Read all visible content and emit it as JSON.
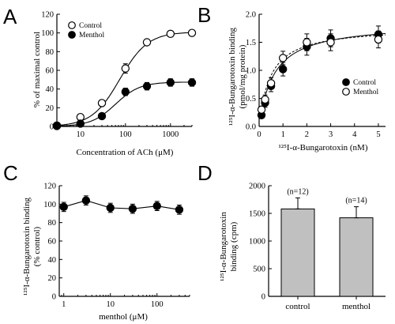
{
  "chart_data": [
    {
      "panel": "A",
      "type": "line",
      "xscale": "log",
      "xlim": [
        3,
        3000
      ],
      "ylim": [
        0,
        120
      ],
      "xticks": [
        10,
        100,
        1000
      ],
      "xticklabels": [
        "10",
        "100",
        "1000"
      ],
      "yticks": [
        0,
        20,
        40,
        60,
        80,
        100,
        120
      ],
      "xlabel": "Concentration of ACh (μM)",
      "ylabel": "% of maximal control",
      "legend_position": "top-left",
      "series": [
        {
          "name": "Control",
          "marker": "open-circle",
          "x": [
            3,
            10,
            30,
            100,
            300,
            1000,
            3000
          ],
          "y": [
            1,
            10,
            25,
            62,
            90,
            99,
            100
          ],
          "err": [
            0.5,
            2,
            3,
            5,
            3,
            3,
            3
          ]
        },
        {
          "name": "Menthol",
          "marker": "filled-circle",
          "x": [
            3,
            10,
            30,
            100,
            300,
            1000,
            3000
          ],
          "y": [
            0.5,
            3,
            11,
            37,
            43,
            47,
            47
          ],
          "err": [
            0.5,
            1,
            2,
            4,
            4,
            4,
            4
          ]
        }
      ]
    },
    {
      "panel": "B",
      "type": "scatter",
      "xlim": [
        0,
        5.3
      ],
      "ylim": [
        0,
        2
      ],
      "xticks": [
        0,
        1,
        2,
        3,
        4,
        5
      ],
      "yticks": [
        0.0,
        0.5,
        1.0,
        1.5,
        2.0
      ],
      "yticklabels": [
        "0.0",
        "0.5",
        "1.0",
        "1.5",
        "2.0"
      ],
      "xlabel": "¹²⁵I-α-Bungarotoxin (nM)",
      "ylabel": "¹²⁵I-α-Bungarotoxin binding (pmol/mg protein)",
      "legend_position": "bottom-right",
      "series": [
        {
          "name": "Control",
          "marker": "filled-circle",
          "x": [
            0.1,
            0.25,
            0.5,
            1,
            2,
            3,
            5
          ],
          "y": [
            0.2,
            0.42,
            0.72,
            1.02,
            1.42,
            1.57,
            1.64
          ],
          "err": [
            0.05,
            0.08,
            0.1,
            0.12,
            0.15,
            0.15,
            0.15
          ]
        },
        {
          "name": "Menthol",
          "marker": "open-circle",
          "x": [
            0.1,
            0.25,
            0.5,
            1,
            2,
            3,
            5
          ],
          "y": [
            0.3,
            0.48,
            0.77,
            1.22,
            1.5,
            1.5,
            1.55
          ],
          "err": [
            0.05,
            0.08,
            0.1,
            0.12,
            0.15,
            0.15,
            0.15
          ]
        }
      ]
    },
    {
      "panel": "C",
      "type": "line",
      "xscale": "log",
      "xlim": [
        0.8,
        500
      ],
      "ylim": [
        0,
        120
      ],
      "xticks": [
        1,
        10,
        100
      ],
      "xticklabels": [
        "1",
        "10",
        "100"
      ],
      "yticks": [
        0,
        20,
        40,
        60,
        80,
        100,
        120
      ],
      "xlabel": "menthol (μM)",
      "ylabel": "¹²⁵I-α-Bungarotoxin binding (% control)",
      "series": [
        {
          "name": "",
          "marker": "filled-circle",
          "x": [
            1,
            3,
            10,
            30,
            100,
            300
          ],
          "y": [
            97,
            104,
            96,
            95,
            98,
            94
          ],
          "err": [
            5,
            5,
            5,
            5,
            5,
            5
          ]
        }
      ]
    },
    {
      "panel": "D",
      "type": "bar",
      "categories": [
        "control",
        "menthol"
      ],
      "values": [
        1580,
        1420
      ],
      "err": [
        200,
        200
      ],
      "bar_labels": [
        "(n=12)",
        "(n=14)"
      ],
      "ylim": [
        0,
        2000
      ],
      "yticks": [
        0,
        500,
        1000,
        1500,
        2000
      ],
      "xlabel": "",
      "ylabel": "¹²⁵I-α-Bungarotoxin binding (cpm)",
      "bar_color": "#c0c0c0"
    }
  ],
  "panels": {
    "A": {
      "letter": "A",
      "ylabel": "% of maximal control",
      "xlabel": "Concentration of ACh (μM)",
      "legend": [
        {
          "label": "Control",
          "marker": "open"
        },
        {
          "label": "Menthol",
          "marker": "filled"
        }
      ]
    },
    "B": {
      "letter": "B",
      "ylabel_line1": "¹²⁵I-α-Bungarotoxin binding",
      "ylabel_line2": "(pmol/mg protein)",
      "xlabel": "¹²⁵I-α-Bungarotoxin (nM)",
      "legend": [
        {
          "label": "Control",
          "marker": "filled"
        },
        {
          "label": "Menthol",
          "marker": "open"
        }
      ]
    },
    "C": {
      "letter": "C",
      "ylabel_line1": "¹²⁵I-α-Bungarotoxin binding",
      "ylabel_line2": "(% control)",
      "xlabel": "menthol (μM)"
    },
    "D": {
      "letter": "D",
      "ylabel_line1": "¹²⁵I-α-Bungarotoxin",
      "ylabel_line2": "binding (cpm)"
    }
  },
  "colors": {
    "ink": "#000000",
    "bar_fill": "#c0c0c0",
    "background": "#ffffff"
  }
}
